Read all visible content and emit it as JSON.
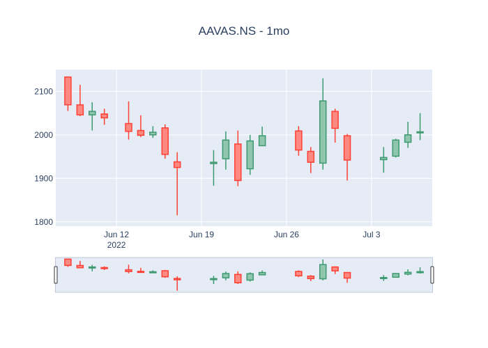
{
  "chart_data": {
    "type": "candlestick",
    "title": "AAVAS.NS - 1mo",
    "xlabel": "",
    "ylabel": "",
    "ylim": [
      1790,
      2150
    ],
    "yticks": [
      1800,
      1900,
      2000,
      2100
    ],
    "xlim": [
      "2022-06-07",
      "2022-07-08"
    ],
    "xticks": [
      {
        "date": "2022-06-12",
        "label": "Jun 12",
        "sublabel": "2022"
      },
      {
        "date": "2022-06-19",
        "label": "Jun 19",
        "sublabel": ""
      },
      {
        "date": "2022-06-26",
        "label": "Jun 26",
        "sublabel": ""
      },
      {
        "date": "2022-07-03",
        "label": "Jul 3",
        "sublabel": ""
      }
    ],
    "grid": true,
    "rangeslider": true,
    "colors": {
      "increasing": "#3d9970",
      "increasing_fill": "#8fc6ad",
      "decreasing": "#ff4136",
      "decreasing_fill": "#ff8880",
      "plot_bg": "#e5ecf6",
      "grid": "#ffffff",
      "text": "#2a3f5f"
    },
    "candles": [
      {
        "date": "2022-06-08",
        "open": 2133,
        "high": 2133,
        "low": 2055,
        "close": 2069
      },
      {
        "date": "2022-06-09",
        "open": 2069,
        "high": 2115,
        "low": 2043,
        "close": 2046
      },
      {
        "date": "2022-06-10",
        "open": 2046,
        "high": 2075,
        "low": 2010,
        "close": 2054
      },
      {
        "date": "2022-06-11",
        "open": 2048,
        "high": 2060,
        "low": 2023,
        "close": 2039
      },
      {
        "date": "2022-06-13",
        "open": 2026,
        "high": 2077,
        "low": 1989,
        "close": 2008
      },
      {
        "date": "2022-06-14",
        "open": 2010,
        "high": 2045,
        "low": 1995,
        "close": 1999
      },
      {
        "date": "2022-06-15",
        "open": 2000,
        "high": 2020,
        "low": 1993,
        "close": 2006
      },
      {
        "date": "2022-06-16",
        "open": 2016,
        "high": 2024,
        "low": 1945,
        "close": 1955
      },
      {
        "date": "2022-06-17",
        "open": 1938,
        "high": 1960,
        "low": 1815,
        "close": 1925
      },
      {
        "date": "2022-06-20",
        "open": 1934,
        "high": 1965,
        "low": 1883,
        "close": 1937
      },
      {
        "date": "2022-06-21",
        "open": 1945,
        "high": 2008,
        "low": 1920,
        "close": 1988
      },
      {
        "date": "2022-06-22",
        "open": 1979,
        "high": 2010,
        "low": 1882,
        "close": 1895
      },
      {
        "date": "2022-06-23",
        "open": 1922,
        "high": 2000,
        "low": 1908,
        "close": 1986
      },
      {
        "date": "2022-06-24",
        "open": 1975,
        "high": 2019,
        "low": 1975,
        "close": 1998
      },
      {
        "date": "2022-06-27",
        "open": 2009,
        "high": 2020,
        "low": 1952,
        "close": 1965
      },
      {
        "date": "2022-06-28",
        "open": 1962,
        "high": 1972,
        "low": 1912,
        "close": 1937
      },
      {
        "date": "2022-06-29",
        "open": 1935,
        "high": 2130,
        "low": 1920,
        "close": 2078
      },
      {
        "date": "2022-06-30",
        "open": 2054,
        "high": 2060,
        "low": 1982,
        "close": 2015
      },
      {
        "date": "2022-07-01",
        "open": 1998,
        "high": 2002,
        "low": 1895,
        "close": 1942
      },
      {
        "date": "2022-07-04",
        "open": 1943,
        "high": 1972,
        "low": 1913,
        "close": 1948
      },
      {
        "date": "2022-07-05",
        "open": 1951,
        "high": 1991,
        "low": 1948,
        "close": 1988
      },
      {
        "date": "2022-07-06",
        "open": 1983,
        "high": 2030,
        "low": 1970,
        "close": 2000
      },
      {
        "date": "2022-07-07",
        "open": 2005,
        "high": 2050,
        "low": 1988,
        "close": 2007
      }
    ]
  }
}
